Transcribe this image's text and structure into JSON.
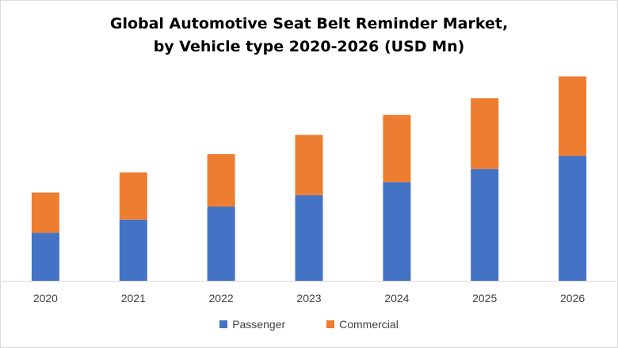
{
  "chart_data": {
    "type": "bar",
    "stacked": true,
    "title": "Global Automotive Seat Belt Reminder Market,",
    "subtitle": "by Vehicle type 2020-2026 (USD Mn)",
    "categories": [
      "2020",
      "2021",
      "2022",
      "2023",
      "2024",
      "2025",
      "2026"
    ],
    "series": [
      {
        "name": "Passenger",
        "color": "#4472c4",
        "values": [
          55,
          70,
          85,
          98,
          113,
          128,
          143
        ]
      },
      {
        "name": "Commercial",
        "color": "#ed7d31",
        "values": [
          46,
          54,
          60,
          69,
          77,
          81,
          91
        ]
      }
    ],
    "ylim": [
      0,
      240
    ],
    "grid": false,
    "legend_position": "bottom"
  }
}
